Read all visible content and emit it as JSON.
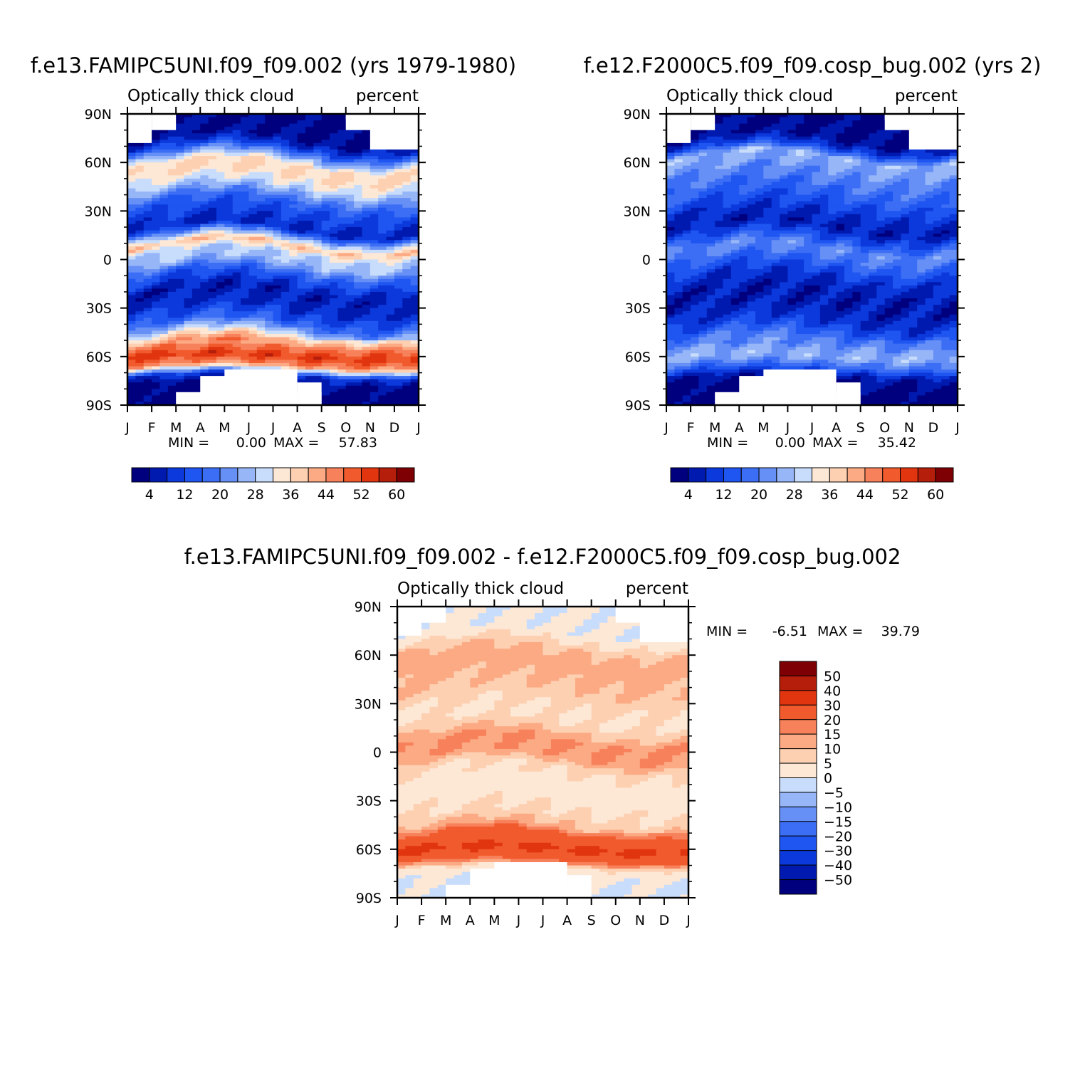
{
  "chart_data": [
    {
      "type": "heatmap",
      "title": "f.e13.FAMIPC5UNI.f09_f09.002 (yrs 1979-1980)",
      "subtitle": "Optically thick cloud",
      "units": "percent",
      "x_tick_labels": [
        "J",
        "F",
        "M",
        "A",
        "M",
        "J",
        "J",
        "A",
        "S",
        "O",
        "N",
        "D",
        "J"
      ],
      "y_tick_labels": [
        "90N",
        "60N",
        "30N",
        "0",
        "30S",
        "60S",
        "90S"
      ],
      "ylim": [
        -90,
        90
      ],
      "min_label": "MIN =",
      "min_value": "0.00",
      "max_label": "MAX =",
      "max_value": "57.83",
      "colorbar_labels": [
        "4",
        "12",
        "20",
        "28",
        "36",
        "44",
        "52",
        "60"
      ],
      "colorbar_colors": [
        "#00007f",
        "#001ab0",
        "#0c39dc",
        "#1f55f0",
        "#3c6ef5",
        "#6690f6",
        "#96b6f8",
        "#c8dcfb",
        "#fde8d6",
        "#fdd0b2",
        "#fbaa84",
        "#f7815a",
        "#f15a2c",
        "#e1350f",
        "#b41e0a",
        "#7e0005"
      ],
      "profile": [
        [
          -90,
          1
        ],
        [
          -78,
          2
        ],
        [
          -72,
          10
        ],
        [
          -66,
          44
        ],
        [
          -60,
          54
        ],
        [
          -54,
          46
        ],
        [
          -47,
          30
        ],
        [
          -40,
          16
        ],
        [
          -30,
          8
        ],
        [
          -20,
          6
        ],
        [
          -10,
          15
        ],
        [
          -3,
          26
        ],
        [
          4,
          30
        ],
        [
          8,
          40
        ],
        [
          12,
          28
        ],
        [
          18,
          8
        ],
        [
          25,
          10
        ],
        [
          35,
          16
        ],
        [
          45,
          30
        ],
        [
          52,
          36
        ],
        [
          58,
          36
        ],
        [
          63,
          24
        ],
        [
          68,
          12
        ],
        [
          74,
          4
        ],
        [
          90,
          2
        ]
      ]
    },
    {
      "type": "heatmap",
      "title": "f.e12.F2000C5.f09_f09.cosp_bug.002 (yrs 2)",
      "subtitle": "Optically thick cloud",
      "units": "percent",
      "x_tick_labels": [
        "J",
        "F",
        "M",
        "A",
        "M",
        "J",
        "J",
        "A",
        "S",
        "O",
        "N",
        "D",
        "J"
      ],
      "y_tick_labels": [
        "90N",
        "60N",
        "30N",
        "0",
        "30S",
        "60S",
        "90S"
      ],
      "ylim": [
        -90,
        90
      ],
      "min_label": "MIN =",
      "min_value": "0.00",
      "max_label": "MAX =",
      "max_value": "35.42",
      "colorbar_labels": [
        "4",
        "12",
        "20",
        "28",
        "36",
        "44",
        "52",
        "60"
      ],
      "colorbar_colors": [
        "#00007f",
        "#001ab0",
        "#0c39dc",
        "#1f55f0",
        "#3c6ef5",
        "#6690f6",
        "#96b6f8",
        "#c8dcfb",
        "#fde8d6",
        "#fdd0b2",
        "#fbaa84",
        "#f7815a",
        "#f15a2c",
        "#e1350f",
        "#b41e0a",
        "#7e0005"
      ],
      "profile": [
        [
          -90,
          1
        ],
        [
          -78,
          2
        ],
        [
          -72,
          6
        ],
        [
          -66,
          18
        ],
        [
          -60,
          26
        ],
        [
          -54,
          22
        ],
        [
          -47,
          16
        ],
        [
          -40,
          10
        ],
        [
          -30,
          6
        ],
        [
          -20,
          6
        ],
        [
          -10,
          10
        ],
        [
          -3,
          16
        ],
        [
          6,
          22
        ],
        [
          12,
          14
        ],
        [
          20,
          6
        ],
        [
          30,
          10
        ],
        [
          40,
          16
        ],
        [
          50,
          20
        ],
        [
          58,
          24
        ],
        [
          63,
          26
        ],
        [
          68,
          12
        ],
        [
          74,
          4
        ],
        [
          90,
          2
        ]
      ]
    },
    {
      "type": "heatmap",
      "title": "f.e13.FAMIPC5UNI.f09_f09.002 - f.e12.F2000C5.f09_f09.cosp_bug.002",
      "subtitle": "Optically thick cloud",
      "units": "percent",
      "x_tick_labels": [
        "J",
        "F",
        "M",
        "A",
        "M",
        "J",
        "J",
        "A",
        "S",
        "O",
        "N",
        "D",
        "J"
      ],
      "y_tick_labels": [
        "90N",
        "60N",
        "30N",
        "0",
        "30S",
        "60S",
        "90S"
      ],
      "ylim": [
        -90,
        90
      ],
      "min_label": "MIN =",
      "min_value": "-6.51",
      "max_label": "MAX =",
      "max_value": "39.79",
      "colorbar_labels": [
        "50",
        "40",
        "30",
        "20",
        "15",
        "10",
        "5",
        "0",
        "−5",
        "−10",
        "−15",
        "−20",
        "−30",
        "−40",
        "−50"
      ],
      "colorbar_colors": [
        "#7e0005",
        "#b41e0a",
        "#e1350f",
        "#f15a2c",
        "#f7815a",
        "#fbaa84",
        "#fdd0b2",
        "#fde8d6",
        "#c8dcfb",
        "#96b6f8",
        "#6690f6",
        "#3c6ef5",
        "#1f55f0",
        "#0c39dc",
        "#001ab0",
        "#00007f"
      ],
      "profile": [
        [
          -90,
          -1
        ],
        [
          -78,
          0.5
        ],
        [
          -72,
          4
        ],
        [
          -66,
          25
        ],
        [
          -60,
          32
        ],
        [
          -54,
          25
        ],
        [
          -47,
          12
        ],
        [
          -40,
          6
        ],
        [
          -30,
          3
        ],
        [
          -20,
          2
        ],
        [
          -10,
          6
        ],
        [
          -3,
          14
        ],
        [
          6,
          16
        ],
        [
          12,
          10
        ],
        [
          20,
          4
        ],
        [
          30,
          6
        ],
        [
          40,
          10
        ],
        [
          50,
          12
        ],
        [
          58,
          12
        ],
        [
          63,
          10
        ],
        [
          68,
          5
        ],
        [
          74,
          1
        ],
        [
          90,
          0.5
        ]
      ]
    }
  ]
}
